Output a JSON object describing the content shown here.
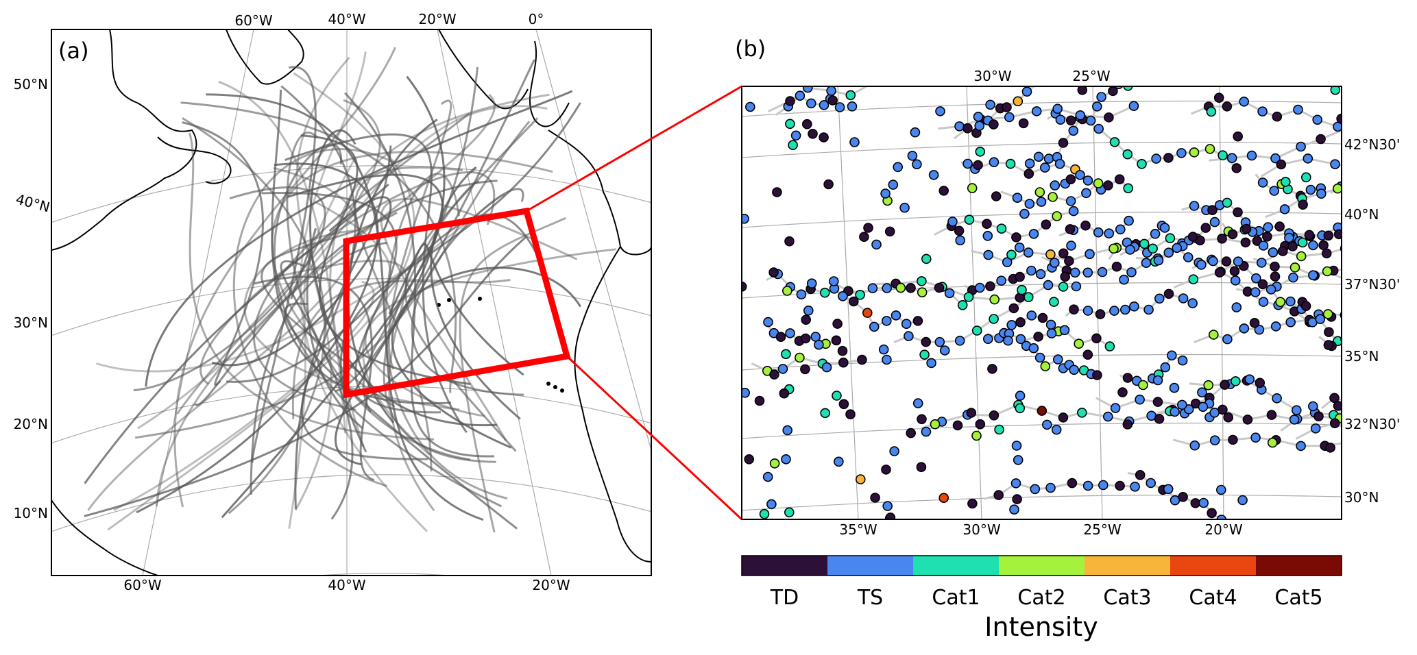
{
  "panel_a": {
    "label": "(a)",
    "top_lon_labels": [
      "60°W",
      "40°W",
      "20°W",
      "0°"
    ],
    "bottom_lon_labels": [
      "60°W",
      "40°W",
      "20°W"
    ],
    "lat_labels": [
      "50°N",
      "40°N",
      "30°N",
      "20°N",
      "10°N"
    ]
  },
  "panel_b": {
    "label": "(b)",
    "top_lon_labels": [
      "30°W",
      "25°W"
    ],
    "bottom_lon_labels": [
      "35°W",
      "30°W",
      "25°W",
      "20°W"
    ],
    "right_lat_labels": [
      "42°N30'",
      "40°N",
      "37°N30'",
      "35°N",
      "32°N30'",
      "30°N"
    ]
  },
  "colorbar": {
    "title": "Intensity",
    "categories": [
      "TD",
      "TS",
      "Cat1",
      "Cat2",
      "Cat3",
      "Cat4",
      "Cat5"
    ],
    "colors": [
      "#2c1038",
      "#4a86f0",
      "#1ee0b0",
      "#a5f23c",
      "#f7b539",
      "#e8470f",
      "#7a0a04"
    ]
  },
  "colors": {
    "zoom_box": "#ff0000",
    "track": "#555555",
    "graticule": "#aaaaaa"
  }
}
